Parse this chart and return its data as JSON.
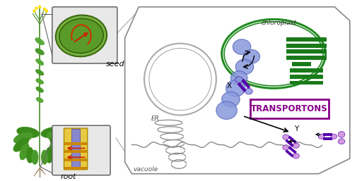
{
  "bg_color": "#ffffff",
  "cell_outline_color": "#888888",
  "chloroplast_circle_color": "#228B22",
  "transporter_blue": "#8899DD",
  "transporter_purple_dark": "#6600BB",
  "transporter_purple_light": "#CC88DD",
  "arrow_color": "#111111",
  "transportons_box_color": "#880088",
  "transportons_text": "TRANSPORTONS",
  "green_dark": "#1a7a1a",
  "label_seed": "seed",
  "label_root": "root",
  "label_chloroplast": "chloroplast",
  "label_ER": "ER",
  "label_vacuole": "vacuole",
  "label_X": "X",
  "label_Y": "Y",
  "nucleus_color": "#aaaaaa",
  "er_color": "#888888"
}
